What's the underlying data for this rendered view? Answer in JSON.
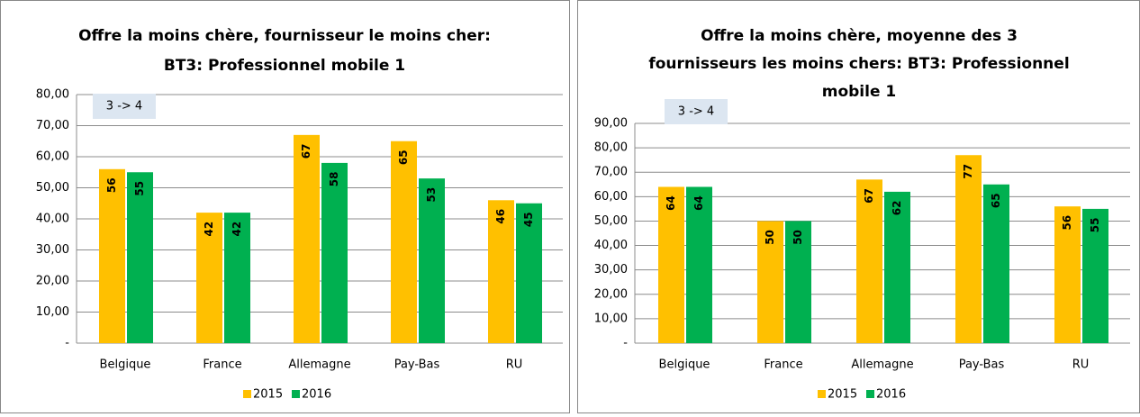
{
  "chart_data": [
    {
      "type": "bar",
      "title": [
        "Offre la moins chère, fournisseur le moins cher:",
        "BT3: Professionnel mobile 1"
      ],
      "annotation": "3 -> 4",
      "categories": [
        "Belgique",
        "France",
        "Allemagne",
        "Pay-Bas",
        "RU"
      ],
      "series": [
        {
          "name": "2015",
          "color": "#ffc000",
          "values": [
            56,
            42,
            67,
            65,
            46
          ]
        },
        {
          "name": "2016",
          "color": "#00b050",
          "values": [
            55,
            42,
            58,
            53,
            45
          ]
        }
      ],
      "ylim": [
        0,
        80
      ],
      "yticks": [
        {
          "value": 0,
          "label": "-"
        },
        {
          "value": 10,
          "label": "10,00"
        },
        {
          "value": 20,
          "label": "20,00"
        },
        {
          "value": 30,
          "label": "30,00"
        },
        {
          "value": 40,
          "label": "40,00"
        },
        {
          "value": 50,
          "label": "50,00"
        },
        {
          "value": 60,
          "label": "60,00"
        },
        {
          "value": 70,
          "label": "70,00"
        },
        {
          "value": 80,
          "label": "80,00"
        }
      ],
      "grid": true,
      "legend": "bottom"
    },
    {
      "type": "bar",
      "title": [
        "Offre la moins chère, moyenne des 3",
        "fournisseurs les moins chers: BT3: Professionnel",
        "mobile 1"
      ],
      "annotation": "3 -> 4",
      "categories": [
        "Belgique",
        "France",
        "Allemagne",
        "Pay-Bas",
        "RU"
      ],
      "series": [
        {
          "name": "2015",
          "color": "#ffc000",
          "values": [
            64,
            50,
            67,
            77,
            56
          ]
        },
        {
          "name": "2016",
          "color": "#00b050",
          "values": [
            64,
            50,
            62,
            65,
            55
          ]
        }
      ],
      "ylim": [
        0,
        90
      ],
      "yticks": [
        {
          "value": 0,
          "label": "-"
        },
        {
          "value": 10,
          "label": "10,00"
        },
        {
          "value": 20,
          "label": "20,00"
        },
        {
          "value": 30,
          "label": "30,00"
        },
        {
          "value": 40,
          "label": "40,00"
        },
        {
          "value": 50,
          "label": "50,00"
        },
        {
          "value": 60,
          "label": "60,00"
        },
        {
          "value": 70,
          "label": "70,00"
        },
        {
          "value": 80,
          "label": "80,00"
        },
        {
          "value": 90,
          "label": "90,00"
        }
      ],
      "grid": true,
      "legend": "bottom"
    }
  ]
}
